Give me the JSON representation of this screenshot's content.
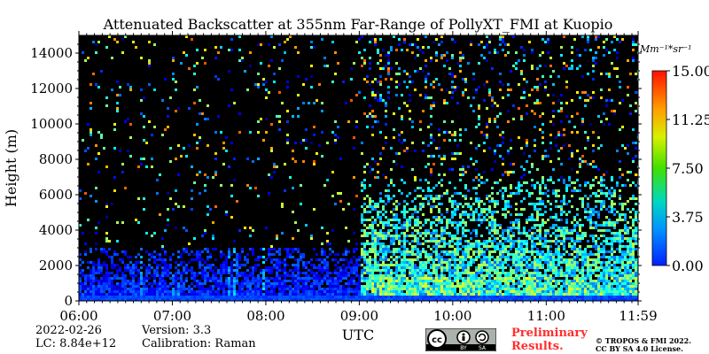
{
  "chart_data": {
    "type": "heatmap",
    "title": "Attenuated Backscatter at 355nm Far-Range of PollyXT_FMI at Kuopio",
    "xlabel": "UTC",
    "ylabel": "Height (m)",
    "x_ticks": [
      "06:00",
      "07:00",
      "08:00",
      "09:00",
      "10:00",
      "11:00",
      "11:59"
    ],
    "xlim_hours": [
      6.0,
      11.983
    ],
    "y_ticks": [
      0,
      2000,
      4000,
      6000,
      8000,
      10000,
      12000,
      14000
    ],
    "ylim": [
      0,
      15000
    ],
    "colorbar": {
      "unit": "Mm⁻¹*sr⁻¹",
      "ticks": [
        "0.00",
        "3.75",
        "7.50",
        "11.25",
        "15.00"
      ],
      "range": [
        0,
        15
      ],
      "colormap": "jet"
    },
    "background_color": "#000000",
    "features": [
      {
        "type": "boundary-layer",
        "time_range": [
          "06:00",
          "11:59"
        ],
        "height_max": 400,
        "value": 2.5
      },
      {
        "type": "aerosol-layer",
        "time_range": [
          "09:00",
          "11:59"
        ],
        "height_range": [
          300,
          7000
        ],
        "value": 6.5
      },
      {
        "type": "lower-signal",
        "time_range": [
          "06:00",
          "09:00"
        ],
        "height_range": [
          400,
          3000
        ],
        "value": 2.0
      }
    ]
  },
  "footer": {
    "date": "2022-02-26",
    "lc": "LC: 8.84e+12",
    "version": "Version: 3.3",
    "calibration": "Calibration: Raman",
    "preliminary": [
      "Preliminary",
      "Results."
    ],
    "copyright": [
      "© TROPOS & FMI 2022.",
      "CC BY SA 4.0 License."
    ],
    "cc_labels": [
      "BY",
      "SA"
    ]
  }
}
